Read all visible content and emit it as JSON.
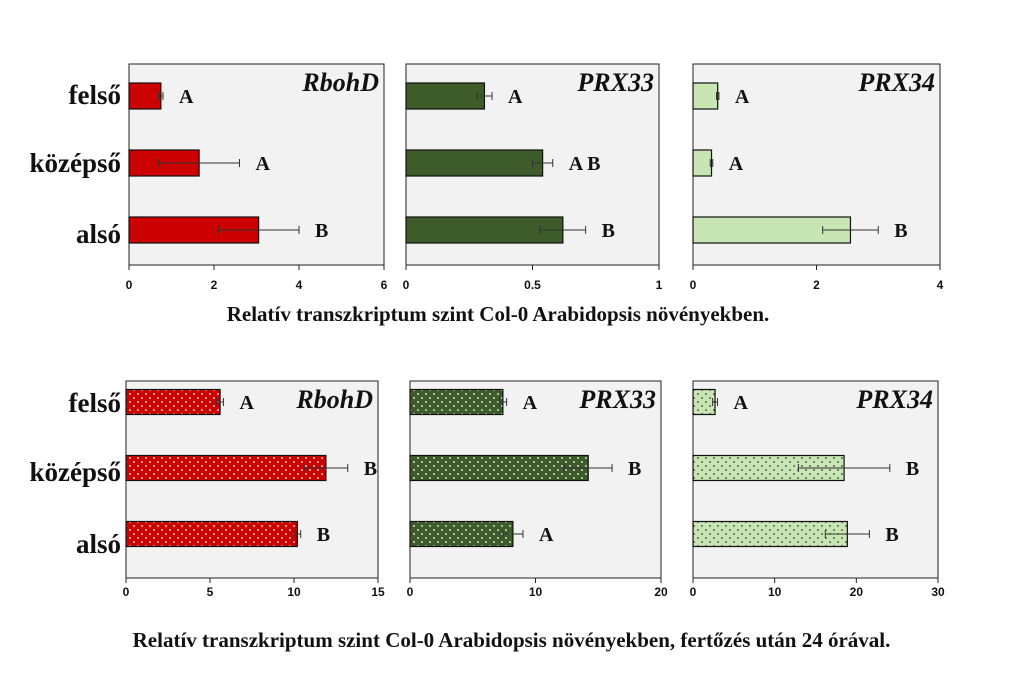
{
  "chart_data": {
    "type": "bar",
    "orientation": "horizontal",
    "categories": [
      "felső",
      "középső",
      "alsó"
    ],
    "rows": [
      {
        "caption": "Relatív transzkriptum szint Col-0 Arabidopsis növényekben.",
        "pattern": "solid",
        "panels": [
          {
            "title": "RbohD",
            "color": "#cc0000",
            "xlim": [
              0,
              6
            ],
            "ticks": [
              "0",
              "2",
              "4",
              "6"
            ],
            "values": [
              0.75,
              1.65,
              3.05
            ],
            "errors": [
              0.05,
              0.95,
              0.95
            ],
            "letters": [
              "A",
              "A",
              "B"
            ]
          },
          {
            "title": "PRX33",
            "color": "#3d5c2a",
            "xlim": [
              0,
              1
            ],
            "ticks": [
              "0",
              "0.5",
              "1"
            ],
            "values": [
              0.31,
              0.54,
              0.62
            ],
            "errors": [
              0.03,
              0.04,
              0.09
            ],
            "letters": [
              "A",
              "A B",
              "B"
            ]
          },
          {
            "title": "PRX34",
            "color": "#c8e6b4",
            "xlim": [
              0,
              4
            ],
            "ticks": [
              "0",
              "2",
              "4"
            ],
            "values": [
              0.4,
              0.3,
              2.55
            ],
            "errors": [
              0.02,
              0.02,
              0.45
            ],
            "letters": [
              "A",
              "A",
              "B"
            ]
          }
        ]
      },
      {
        "caption": "Relatív transzkriptum szint Col-0 Arabidopsis növényekben, fertőzés után 24 órával.",
        "pattern": "dotted",
        "panels": [
          {
            "title": "RbohD",
            "color": "#cc0000",
            "xlim": [
              0,
              15
            ],
            "ticks": [
              "0",
              "5",
              "10",
              "15"
            ],
            "values": [
              5.6,
              11.9,
              10.2
            ],
            "errors": [
              0.2,
              1.3,
              0.2
            ],
            "letters": [
              "A",
              "B",
              "B"
            ]
          },
          {
            "title": "PRX33",
            "color": "#3d5c2a",
            "xlim": [
              0,
              20
            ],
            "ticks": [
              "0",
              "10",
              "20"
            ],
            "values": [
              7.4,
              14.2,
              8.2
            ],
            "errors": [
              0.3,
              1.9,
              0.8
            ],
            "letters": [
              "A",
              "B",
              "A"
            ]
          },
          {
            "title": "PRX34",
            "color": "#c8e6b4",
            "xlim": [
              0,
              30
            ],
            "ticks": [
              "0",
              "10",
              "20",
              "30"
            ],
            "values": [
              2.7,
              18.5,
              18.9
            ],
            "errors": [
              0.3,
              5.6,
              2.7
            ],
            "letters": [
              "A",
              "B",
              "B"
            ]
          }
        ]
      }
    ]
  }
}
